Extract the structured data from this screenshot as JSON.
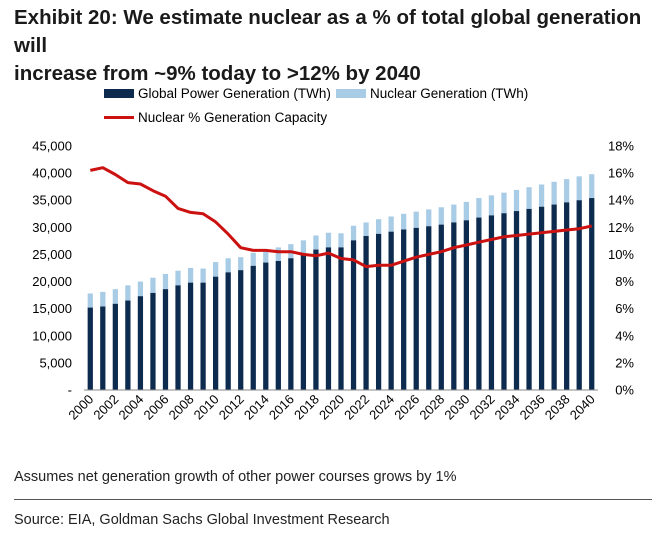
{
  "title_line1": "Exhibit 20: We estimate nuclear as a % of total global generation will",
  "title_line2": "increase from ~9% today to >12% by 2040",
  "footnote": "Assumes net generation growth of other power courses grows by 1%",
  "source": "Source: EIA, Goldman Sachs Global Investment Research",
  "colors": {
    "global": "#0d2b4f",
    "nuclear": "#a9cce6",
    "line": "#cc1111"
  },
  "chart_data": {
    "type": "bar",
    "title": "",
    "xlabel": "",
    "ylabel": "",
    "ylim": [
      0,
      45000
    ],
    "y2lim": [
      0,
      18
    ],
    "left_ticks": [
      "-",
      "5,000",
      "10,000",
      "15,000",
      "20,000",
      "25,000",
      "30,000",
      "35,000",
      "40,000",
      "45,000"
    ],
    "right_ticks": [
      "0%",
      "2%",
      "4%",
      "6%",
      "8%",
      "10%",
      "12%",
      "14%",
      "16%",
      "18%"
    ],
    "x": [
      2000,
      2001,
      2002,
      2003,
      2004,
      2005,
      2006,
      2007,
      2008,
      2009,
      2010,
      2011,
      2012,
      2013,
      2014,
      2015,
      2016,
      2017,
      2018,
      2019,
      2020,
      2021,
      2022,
      2023,
      2024,
      2025,
      2026,
      2027,
      2028,
      2029,
      2030,
      2031,
      2032,
      2033,
      2034,
      2035,
      2036,
      2037,
      2038,
      2039,
      2040
    ],
    "x_tick_labels": [
      "2000",
      "2002",
      "2004",
      "2006",
      "2008",
      "2010",
      "2012",
      "2014",
      "2016",
      "2018",
      "2020",
      "2022",
      "2024",
      "2026",
      "2028",
      "2030",
      "2032",
      "2034",
      "2036",
      "2038",
      "2040"
    ],
    "series": [
      {
        "name": "Global Power Generation (TWh)",
        "kind": "bar",
        "values": [
          15200,
          15400,
          15900,
          16500,
          17300,
          17900,
          18600,
          19300,
          19800,
          19800,
          20900,
          21700,
          22100,
          22900,
          23500,
          23800,
          24300,
          25000,
          25900,
          26300,
          26300,
          27600,
          28400,
          28800,
          29200,
          29600,
          29900,
          30200,
          30500,
          30900,
          31300,
          31800,
          32200,
          32600,
          33000,
          33400,
          33800,
          34200,
          34600,
          35000,
          35400
        ]
      },
      {
        "name": "Nuclear Generation (TWh)",
        "kind": "bar",
        "values": [
          2600,
          2700,
          2700,
          2800,
          2700,
          2800,
          2800,
          2700,
          2700,
          2600,
          2700,
          2600,
          2400,
          2400,
          2400,
          2500,
          2600,
          2600,
          2600,
          2700,
          2600,
          2700,
          2500,
          2700,
          2800,
          2900,
          3000,
          3100,
          3200,
          3300,
          3400,
          3600,
          3700,
          3800,
          3900,
          4000,
          4100,
          4200,
          4300,
          4400,
          4400
        ]
      },
      {
        "name": "Nuclear % Generation Capacity",
        "kind": "line",
        "axis": "right",
        "values": [
          16.2,
          16.4,
          15.9,
          15.3,
          15.2,
          14.7,
          14.3,
          13.4,
          13.1,
          13.0,
          12.4,
          11.5,
          10.5,
          10.3,
          10.3,
          10.2,
          10.2,
          10.0,
          9.9,
          10.1,
          9.7,
          9.6,
          9.1,
          9.2,
          9.2,
          9.5,
          9.8,
          10.0,
          10.2,
          10.5,
          10.7,
          10.9,
          11.1,
          11.3,
          11.4,
          11.5,
          11.6,
          11.7,
          11.8,
          11.9,
          12.1
        ]
      }
    ]
  }
}
